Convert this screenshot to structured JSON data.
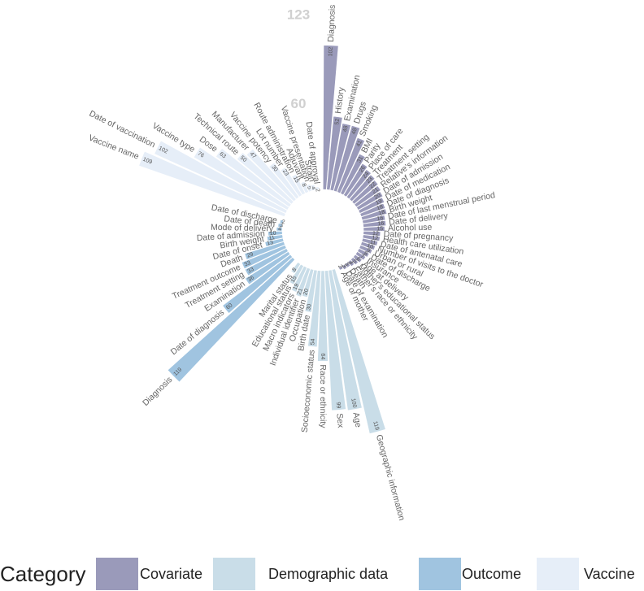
{
  "chart_data": {
    "type": "radial_bar",
    "legend_title": "Category",
    "ylim": [
      0,
      123
    ],
    "yticks": [
      60,
      123
    ],
    "series": [
      {
        "name": "Covariate",
        "color": "#9a9aba",
        "categories": [
          "Diagnosis",
          "History",
          "Examination",
          "Drugs",
          "Smoking",
          "BMI",
          "Parity",
          "Place of care",
          "Treatment",
          "Treatment setting",
          "Relative's information",
          "Date of admission",
          "Date of medication",
          "Date of diagnosis",
          "Birth weight",
          "Date of last menstrual period",
          "Date of delivery",
          "Alcohol use",
          "Date of pregnancy",
          "Health care utilization",
          "Date of antenatal care",
          "Number of visits to the doctor",
          "Urban or rural",
          "Date of discharge",
          "Insurance",
          "Age at delivery",
          "Mother's educational status",
          "Father's race or ethnicity",
          "Death",
          "Date of examination",
          "Age of mother"
        ],
        "values": [
          102,
          52,
          48,
          48,
          41,
          31,
          26,
          24,
          23,
          22,
          21,
          20,
          19,
          18,
          18,
          16,
          16,
          15,
          12,
          12,
          11,
          10,
          9,
          8,
          7,
          6,
          5,
          4,
          3,
          3,
          2
        ]
      },
      {
        "name": "Demographic data",
        "color": "#c9dde8",
        "categories": [
          "Geographic information",
          "Age",
          "Sex",
          "Race or ethnicity",
          "Socioeconomic status",
          "Birth date",
          "Occupation",
          "Individual identifier",
          "Macro indicators",
          "Educational status",
          "Marital status"
        ],
        "values": [
          119,
          100,
          99,
          64,
          54,
          30,
          20,
          21,
          19,
          15,
          8
        ]
      },
      {
        "name": "Outcome",
        "color": "#a0c4e0",
        "categories": [
          "Diagnosis",
          "Date of diagnosis",
          "Examination",
          "Treatment setting",
          "Treatment outcome",
          "Death",
          "Date of onset",
          "Birth weight",
          "Date of admission",
          "Mode of delivery",
          "Date of death",
          "Date of discharge"
        ],
        "values": [
          119,
          60,
          36,
          33,
          33,
          29,
          13,
          11,
          10,
          4,
          3,
          2
        ]
      },
      {
        "name": "Vaccine",
        "color": "#e6eef8",
        "categories": [
          "Vaccine name",
          "Date of vaccination",
          "Vaccine type",
          "Dose",
          "Technical route",
          "Manufacturer",
          "Vaccine potency",
          "Lot number",
          "Route administration",
          "Adjuvant",
          "Vaccine presentation",
          "Strain",
          "Date of approval"
        ],
        "values": [
          109,
          102,
          76,
          63,
          50,
          47,
          30,
          23,
          15,
          8,
          5,
          4,
          2
        ]
      }
    ]
  }
}
